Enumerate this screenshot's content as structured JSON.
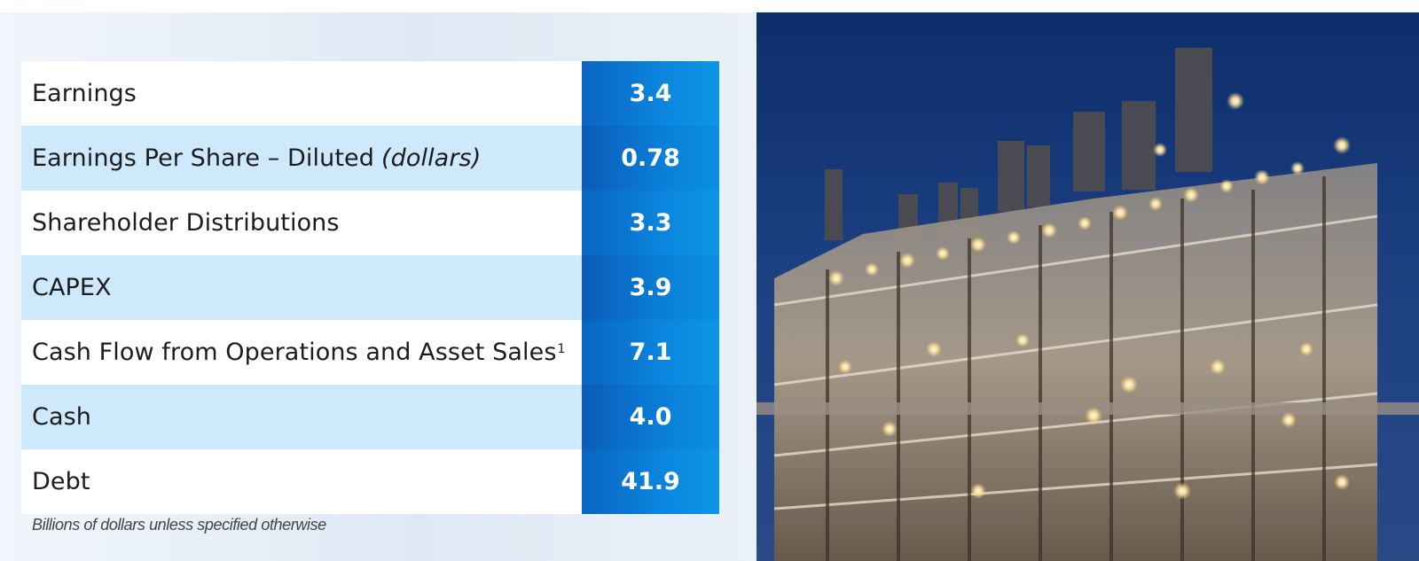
{
  "rows": [
    {
      "label": "Earnings",
      "value": "3.4"
    },
    {
      "label": "Earnings Per Share – Diluted",
      "label_italic": "(dollars)",
      "value": "0.78"
    },
    {
      "label": "Shareholder Distributions",
      "value": "3.3"
    },
    {
      "label": "CAPEX",
      "value": "3.9"
    },
    {
      "label": "Cash Flow from Operations and Asset Sales",
      "footnote_marker": "1",
      "value": "7.1"
    },
    {
      "label": "Cash",
      "value": "4.0"
    },
    {
      "label": "Debt",
      "value": "41.9"
    }
  ],
  "footnote": "Billions of dollars unless specified otherwise",
  "photo": {
    "icon": "refinery-photo"
  }
}
